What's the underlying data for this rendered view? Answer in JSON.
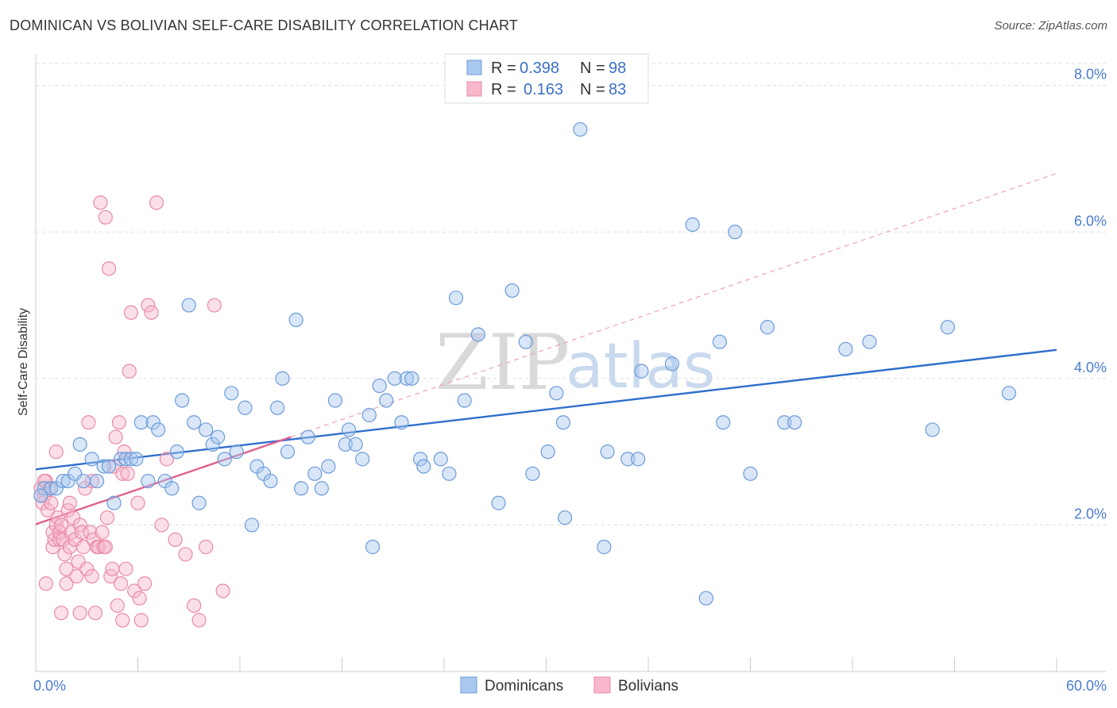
{
  "title": "DOMINICAN VS BOLIVIAN SELF-CARE DISABILITY CORRELATION CHART",
  "source": "Source: ZipAtlas.com",
  "watermark": {
    "zip": "ZIP",
    "atlas": "atlas"
  },
  "legend": {
    "rows": [
      {
        "r_label": "R =",
        "r_value": "0.398",
        "n_label": "N =",
        "n_value": "98"
      },
      {
        "r_label": "R =",
        "r_value": "0.163",
        "n_label": "N =",
        "n_value": "83"
      }
    ]
  },
  "bottom_legend": [
    "Dominicans",
    "Bolivians"
  ],
  "colors": {
    "dominicans_fill": "#a9c8f0",
    "dominicans_stroke": "#6c9bd8",
    "dominicans_line": "#2f6fcc",
    "bolivians_fill": "#f7b8cb",
    "bolivians_stroke": "#e98aa6",
    "bolivians_line": "#e06090",
    "axis_text": "#4a7bd0"
  },
  "chart_data": {
    "type": "scatter",
    "title": "DOMINICAN VS BOLIVIAN SELF-CARE DISABILITY CORRELATION CHART",
    "xlabel": "",
    "ylabel": "Self-Care Disability",
    "xlim": [
      0,
      60
    ],
    "ylim": [
      0,
      8.3
    ],
    "x_tick_labels": [
      "0.0%",
      "60.0%"
    ],
    "y_ticks": [
      2,
      4,
      6,
      8
    ],
    "y_tick_labels": [
      "2.0%",
      "4.0%",
      "6.0%",
      "8.0%"
    ],
    "grid": "horizontal dashed",
    "legend_position": "top-center",
    "series": [
      {
        "name": "Dominicans",
        "r": 0.398,
        "n": 98,
        "trend": {
          "x": [
            0,
            60
          ],
          "y": [
            2.76,
            4.39
          ]
        },
        "points": [
          [
            0.5,
            2.5
          ],
          [
            0.9,
            2.5
          ],
          [
            1.2,
            2.5
          ],
          [
            1.6,
            2.6
          ],
          [
            1.9,
            2.6
          ],
          [
            2.3,
            2.7
          ],
          [
            2.6,
            3.1
          ],
          [
            2.8,
            2.6
          ],
          [
            3.3,
            2.9
          ],
          [
            3.6,
            2.6
          ],
          [
            4.0,
            2.8
          ],
          [
            4.3,
            2.8
          ],
          [
            4.6,
            2.3
          ],
          [
            5.0,
            2.9
          ],
          [
            5.3,
            2.9
          ],
          [
            5.6,
            2.9
          ],
          [
            5.9,
            2.9
          ],
          [
            6.2,
            3.4
          ],
          [
            6.6,
            2.6
          ],
          [
            6.9,
            3.4
          ],
          [
            7.2,
            3.3
          ],
          [
            7.6,
            2.6
          ],
          [
            8.0,
            2.5
          ],
          [
            8.3,
            3.0
          ],
          [
            8.6,
            3.7
          ],
          [
            9.0,
            5.0
          ],
          [
            9.3,
            3.4
          ],
          [
            9.6,
            2.3
          ],
          [
            10.0,
            3.3
          ],
          [
            10.4,
            3.1
          ],
          [
            10.7,
            3.2
          ],
          [
            11.1,
            2.9
          ],
          [
            11.5,
            3.8
          ],
          [
            11.8,
            3.0
          ],
          [
            12.3,
            3.6
          ],
          [
            12.7,
            2.0
          ],
          [
            13.0,
            2.8
          ],
          [
            13.4,
            2.7
          ],
          [
            13.8,
            2.6
          ],
          [
            14.2,
            3.6
          ],
          [
            14.5,
            4.0
          ],
          [
            14.8,
            3.0
          ],
          [
            15.3,
            4.8
          ],
          [
            15.6,
            2.5
          ],
          [
            16.0,
            3.2
          ],
          [
            16.4,
            2.7
          ],
          [
            16.8,
            2.5
          ],
          [
            17.2,
            2.8
          ],
          [
            17.6,
            3.7
          ],
          [
            18.2,
            3.1
          ],
          [
            18.4,
            3.3
          ],
          [
            18.8,
            3.1
          ],
          [
            19.2,
            2.9
          ],
          [
            19.6,
            3.5
          ],
          [
            19.8,
            1.7
          ],
          [
            20.2,
            3.9
          ],
          [
            20.6,
            3.7
          ],
          [
            21.1,
            4.0
          ],
          [
            21.5,
            3.4
          ],
          [
            21.8,
            4.0
          ],
          [
            22.1,
            4.0
          ],
          [
            22.6,
            2.9
          ],
          [
            22.8,
            2.8
          ],
          [
            23.8,
            2.9
          ],
          [
            24.3,
            2.7
          ],
          [
            24.7,
            5.1
          ],
          [
            25.2,
            3.7
          ],
          [
            26.0,
            4.6
          ],
          [
            27.2,
            2.3
          ],
          [
            28.0,
            5.2
          ],
          [
            28.8,
            4.5
          ],
          [
            29.2,
            2.7
          ],
          [
            30.1,
            3.0
          ],
          [
            30.6,
            3.8
          ],
          [
            31.0,
            3.4
          ],
          [
            31.1,
            2.1
          ],
          [
            32.0,
            7.4
          ],
          [
            33.4,
            1.7
          ],
          [
            33.6,
            3.0
          ],
          [
            34.8,
            2.9
          ],
          [
            35.4,
            2.9
          ],
          [
            35.6,
            4.1
          ],
          [
            37.4,
            4.2
          ],
          [
            38.6,
            6.1
          ],
          [
            39.4,
            1.0
          ],
          [
            40.2,
            4.5
          ],
          [
            40.4,
            3.4
          ],
          [
            41.1,
            6.0
          ],
          [
            42.0,
            2.7
          ],
          [
            43.0,
            4.7
          ],
          [
            44.0,
            3.4
          ],
          [
            44.6,
            3.4
          ],
          [
            47.6,
            4.4
          ],
          [
            49.0,
            4.5
          ],
          [
            52.7,
            3.3
          ],
          [
            53.6,
            4.7
          ],
          [
            57.2,
            3.8
          ],
          [
            0.3,
            2.4
          ]
        ]
      },
      {
        "name": "Bolivians",
        "r": 0.163,
        "n": 83,
        "trend_solid": {
          "x": [
            0,
            15
          ],
          "y": [
            2.01,
            3.2
          ]
        },
        "trend_dashed": {
          "x": [
            15,
            60
          ],
          "y": [
            3.2,
            6.8
          ]
        },
        "points": [
          [
            0.3,
            2.5
          ],
          [
            0.4,
            2.3
          ],
          [
            0.5,
            2.4
          ],
          [
            0.6,
            2.6
          ],
          [
            0.7,
            2.2
          ],
          [
            0.8,
            2.5
          ],
          [
            0.9,
            2.3
          ],
          [
            1.0,
            1.9
          ],
          [
            1.0,
            1.7
          ],
          [
            1.1,
            1.8
          ],
          [
            1.2,
            2.0
          ],
          [
            1.3,
            2.1
          ],
          [
            1.4,
            1.8
          ],
          [
            1.4,
            1.9
          ],
          [
            1.5,
            2.0
          ],
          [
            1.6,
            1.8
          ],
          [
            1.7,
            1.6
          ],
          [
            1.8,
            1.4
          ],
          [
            1.8,
            1.2
          ],
          [
            1.9,
            2.2
          ],
          [
            2.0,
            1.7
          ],
          [
            2.1,
            1.9
          ],
          [
            2.2,
            2.1
          ],
          [
            2.3,
            1.8
          ],
          [
            2.4,
            1.3
          ],
          [
            2.5,
            1.5
          ],
          [
            2.6,
            2.0
          ],
          [
            2.7,
            1.9
          ],
          [
            2.8,
            1.7
          ],
          [
            2.9,
            2.5
          ],
          [
            3.0,
            1.4
          ],
          [
            3.1,
            3.4
          ],
          [
            3.2,
            1.9
          ],
          [
            3.3,
            2.6
          ],
          [
            3.4,
            1.8
          ],
          [
            3.5,
            0.8
          ],
          [
            3.6,
            1.7
          ],
          [
            3.7,
            1.7
          ],
          [
            3.8,
            6.4
          ],
          [
            3.9,
            1.9
          ],
          [
            4.0,
            1.7
          ],
          [
            4.1,
            1.7
          ],
          [
            4.2,
            2.1
          ],
          [
            4.3,
            5.5
          ],
          [
            4.4,
            1.3
          ],
          [
            4.5,
            1.4
          ],
          [
            4.6,
            2.8
          ],
          [
            4.7,
            3.2
          ],
          [
            4.8,
            0.9
          ],
          [
            4.9,
            3.4
          ],
          [
            5.0,
            1.2
          ],
          [
            5.1,
            2.7
          ],
          [
            5.2,
            3.0
          ],
          [
            5.3,
            1.4
          ],
          [
            5.4,
            2.7
          ],
          [
            5.5,
            4.1
          ],
          [
            5.6,
            4.9
          ],
          [
            5.8,
            1.1
          ],
          [
            6.0,
            2.3
          ],
          [
            6.2,
            0.7
          ],
          [
            6.4,
            1.2
          ],
          [
            6.6,
            5.0
          ],
          [
            6.8,
            4.9
          ],
          [
            7.1,
            6.4
          ],
          [
            7.4,
            2.0
          ],
          [
            7.7,
            2.9
          ],
          [
            8.2,
            1.8
          ],
          [
            8.8,
            1.6
          ],
          [
            9.3,
            0.9
          ],
          [
            9.6,
            0.7
          ],
          [
            10.0,
            1.7
          ],
          [
            10.5,
            5.0
          ],
          [
            11.0,
            1.1
          ],
          [
            0.5,
            2.6
          ],
          [
            1.2,
            3.0
          ],
          [
            2.0,
            2.3
          ],
          [
            2.6,
            0.8
          ],
          [
            3.3,
            1.3
          ],
          [
            4.1,
            6.2
          ],
          [
            5.1,
            0.7
          ],
          [
            6.1,
            1.0
          ],
          [
            0.6,
            1.2
          ],
          [
            1.5,
            0.8
          ]
        ]
      }
    ]
  }
}
